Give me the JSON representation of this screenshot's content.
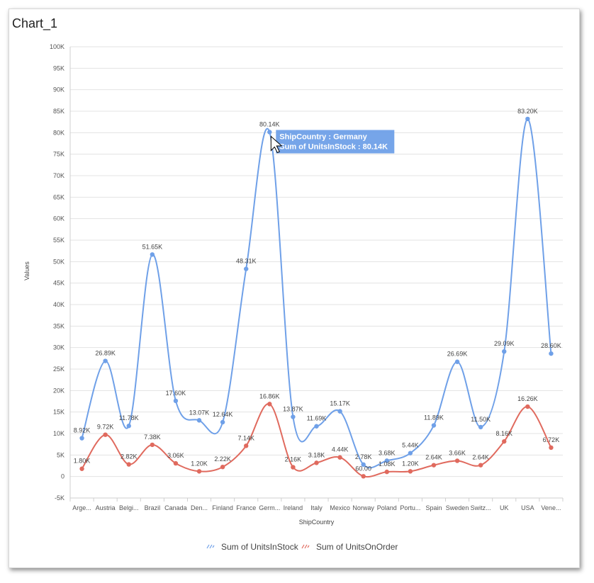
{
  "window": {
    "title": "Chart_1"
  },
  "chart_data": {
    "type": "line",
    "title": "",
    "xlabel": "ShipCountry",
    "ylabel": "Values",
    "ylim": [
      -5000,
      100000
    ],
    "y_ticks": [
      -5000,
      0,
      5000,
      10000,
      15000,
      20000,
      25000,
      30000,
      35000,
      40000,
      45000,
      50000,
      55000,
      60000,
      65000,
      70000,
      75000,
      80000,
      85000,
      90000,
      95000,
      100000
    ],
    "y_tick_labels": [
      "-5K",
      "0",
      "5K",
      "10K",
      "15K",
      "20K",
      "25K",
      "30K",
      "35K",
      "40K",
      "45K",
      "50K",
      "55K",
      "60K",
      "65K",
      "70K",
      "75K",
      "80K",
      "85K",
      "90K",
      "95K",
      "100K"
    ],
    "grid": true,
    "legend_position": "bottom",
    "categories": [
      "Arge...",
      "Austria",
      "Belgi...",
      "Brazil",
      "Canada",
      "Den...",
      "Finland",
      "France",
      "Germ...",
      "Ireland",
      "Italy",
      "Mexico",
      "Norway",
      "Poland",
      "Portu...",
      "Spain",
      "Sweden",
      "Switz...",
      "UK",
      "USA",
      "Vene..."
    ],
    "series": [
      {
        "name": "Sum of UnitsInStock",
        "color": "#6fa0e8",
        "values": [
          8920,
          26890,
          11780,
          51650,
          17600,
          13070,
          12640,
          48310,
          80140,
          13870,
          11690,
          15170,
          2780,
          3680,
          5440,
          11890,
          26690,
          11500,
          29090,
          83200,
          28600
        ],
        "labels": [
          "8.92K",
          "26.89K",
          "11.78K",
          "51.65K",
          "17.60K",
          "13.07K",
          "12.64K",
          "48.31K",
          "80.14K",
          "13.87K",
          "11.69K",
          "15.17K",
          "2.78K",
          "3.68K",
          "5.44K",
          "11.89K",
          "26.69K",
          "11.50K",
          "29.09K",
          "83.20K",
          "28.60K"
        ]
      },
      {
        "name": "Sum of UnitsOnOrder",
        "color": "#e06a5e",
        "values": [
          1800,
          9720,
          2820,
          7380,
          3060,
          1200,
          2220,
          7140,
          16860,
          2160,
          3180,
          4440,
          60,
          1080,
          1200,
          2640,
          3660,
          2640,
          8160,
          16260,
          6720
        ],
        "labels": [
          "1.80K",
          "9.72K",
          "2.82K",
          "7.38K",
          "3.06K",
          "1.20K",
          "2.22K",
          "7.14K",
          "16.86K",
          "2.16K",
          "3.18K",
          "4.44K",
          "60.00",
          "1.08K",
          "1.20K",
          "2.64K",
          "3.66K",
          "2.64K",
          "8.16K",
          "16.26K",
          "6.72K"
        ]
      }
    ],
    "tooltip": {
      "category_index": 8,
      "line1": "ShipCountry : Germany",
      "line2": "Sum of UnitsInStock : 80.14K"
    }
  }
}
